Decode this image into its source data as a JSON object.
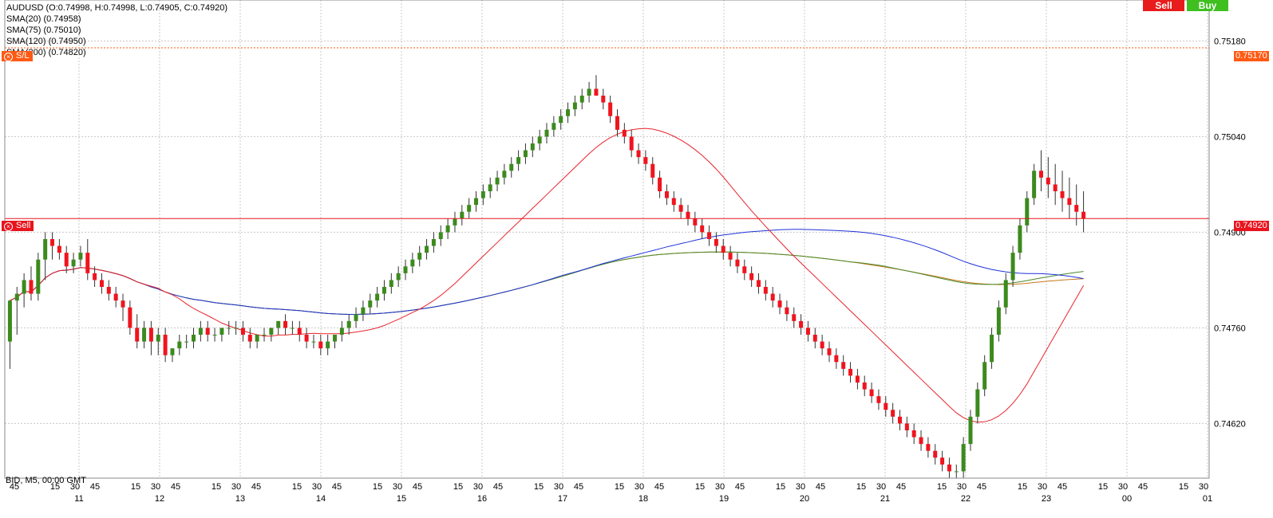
{
  "header": {
    "symbol_line": "AUDUSD (O:0.74998, H:0.74998, L:0.74905, C:0.74920)",
    "indicators": [
      "SMA(20) (0.74958)",
      "SMA(75) (0.75010)",
      "SMA(120) (0.74950)",
      "SMA(200) (0.74820)"
    ]
  },
  "trade_buttons": {
    "sell": "Sell",
    "buy": "Buy"
  },
  "markers": {
    "sl_label": "S/L",
    "sl_price": "0.75170",
    "sell_label": "Sell",
    "sell_price": "0.74920"
  },
  "bid_info": "BID, M5, 00:00 GMT",
  "colors": {
    "candle_up": "#3c8a1e",
    "candle_down": "#f0141e",
    "sma20": "#e8242c",
    "sma75": "#1e32d8",
    "sma120": "#4a8a2a",
    "sma200": "#c8781e",
    "marker_red": "#e8141e",
    "marker_orange": "#ff5a14",
    "grid": "#c8c8c8"
  },
  "chart_data": {
    "type": "candlestick",
    "yticks": [
      0.7518,
      0.7504,
      0.749,
      0.7476,
      0.7462
    ],
    "ylim": [
      0.7454,
      0.7524
    ],
    "day_labels": [
      "11",
      "12",
      "13",
      "14",
      "15",
      "16",
      "17",
      "18",
      "19",
      "20",
      "21",
      "22",
      "23",
      "00",
      "01"
    ],
    "minute_ticks": [
      "15",
      "30",
      "45"
    ],
    "horizontal_lines": [
      {
        "label": "S/L",
        "price": 0.7517
      },
      {
        "label": "Sell",
        "price": 0.7492
      }
    ],
    "candles": [
      [
        0.7474,
        0.748,
        0.747,
        0.748
      ],
      [
        0.748,
        0.7482,
        0.7475,
        0.7481
      ],
      [
        0.7481,
        0.7484,
        0.7479,
        0.7483
      ],
      [
        0.7483,
        0.7485,
        0.748,
        0.7481
      ],
      [
        0.7481,
        0.7487,
        0.748,
        0.7486
      ],
      [
        0.7486,
        0.749,
        0.7483,
        0.7489
      ],
      [
        0.7489,
        0.749,
        0.7486,
        0.7488
      ],
      [
        0.7488,
        0.7489,
        0.7486,
        0.7487
      ],
      [
        0.7487,
        0.7488,
        0.7484,
        0.7485
      ],
      [
        0.7485,
        0.7487,
        0.7484,
        0.7486
      ],
      [
        0.7486,
        0.7488,
        0.7485,
        0.7487
      ],
      [
        0.7487,
        0.7489,
        0.7483,
        0.7484
      ],
      [
        0.7484,
        0.7485,
        0.7482,
        0.7483
      ],
      [
        0.7483,
        0.7484,
        0.7481,
        0.7482
      ],
      [
        0.7482,
        0.7483,
        0.748,
        0.7481
      ],
      [
        0.7481,
        0.7482,
        0.7479,
        0.748
      ],
      [
        0.748,
        0.7481,
        0.7477,
        0.7479
      ],
      [
        0.7479,
        0.748,
        0.7475,
        0.7476
      ],
      [
        0.7476,
        0.7478,
        0.7473,
        0.7474
      ],
      [
        0.7474,
        0.7477,
        0.7473,
        0.7476
      ],
      [
        0.7476,
        0.7477,
        0.7472,
        0.7474
      ],
      [
        0.7474,
        0.7476,
        0.7472,
        0.7475
      ],
      [
        0.7475,
        0.7476,
        0.7471,
        0.7472
      ],
      [
        0.7472,
        0.7473,
        0.7471,
        0.7473
      ],
      [
        0.7473,
        0.7475,
        0.7472,
        0.7474
      ],
      [
        0.7474,
        0.7475,
        0.7473,
        0.7474
      ],
      [
        0.7474,
        0.7476,
        0.7473,
        0.7475
      ],
      [
        0.7475,
        0.7477,
        0.7474,
        0.7476
      ],
      [
        0.7476,
        0.7477,
        0.7474,
        0.7475
      ],
      [
        0.7475,
        0.7476,
        0.7474,
        0.7475
      ],
      [
        0.7475,
        0.7476,
        0.7474,
        0.7476
      ],
      [
        0.7476,
        0.7477,
        0.7475,
        0.7476
      ],
      [
        0.7476,
        0.7477,
        0.7475,
        0.7476
      ],
      [
        0.7476,
        0.7477,
        0.7474,
        0.7475
      ],
      [
        0.7475,
        0.7476,
        0.7473,
        0.7474
      ],
      [
        0.7474,
        0.7475,
        0.7473,
        0.7475
      ],
      [
        0.7475,
        0.7476,
        0.7474,
        0.7475
      ],
      [
        0.7475,
        0.7476,
        0.7474,
        0.7476
      ],
      [
        0.7476,
        0.7477,
        0.7475,
        0.7477
      ],
      [
        0.7477,
        0.7478,
        0.7475,
        0.7476
      ],
      [
        0.7476,
        0.7477,
        0.7475,
        0.7476
      ],
      [
        0.7476,
        0.7477,
        0.7474,
        0.7475
      ],
      [
        0.7475,
        0.7476,
        0.7473,
        0.7474
      ],
      [
        0.7474,
        0.7475,
        0.7473,
        0.7474
      ],
      [
        0.7474,
        0.7475,
        0.7472,
        0.7473
      ],
      [
        0.7473,
        0.7475,
        0.7472,
        0.7474
      ],
      [
        0.7474,
        0.7475,
        0.7473,
        0.7475
      ],
      [
        0.7475,
        0.7477,
        0.7474,
        0.7476
      ],
      [
        0.7476,
        0.7478,
        0.7475,
        0.7477
      ],
      [
        0.7477,
        0.7479,
        0.7476,
        0.7478
      ],
      [
        0.7478,
        0.748,
        0.7477,
        0.7479
      ],
      [
        0.7479,
        0.7481,
        0.7478,
        0.748
      ],
      [
        0.748,
        0.7482,
        0.7479,
        0.7481
      ],
      [
        0.7481,
        0.7483,
        0.748,
        0.7482
      ],
      [
        0.7482,
        0.7484,
        0.7481,
        0.7483
      ],
      [
        0.7483,
        0.7485,
        0.7482,
        0.7484
      ],
      [
        0.7484,
        0.7486,
        0.7483,
        0.7485
      ],
      [
        0.7485,
        0.7487,
        0.7484,
        0.7486
      ],
      [
        0.7486,
        0.7488,
        0.7485,
        0.7487
      ],
      [
        0.7487,
        0.7489,
        0.7486,
        0.7488
      ],
      [
        0.7488,
        0.749,
        0.7487,
        0.7489
      ],
      [
        0.7489,
        0.7491,
        0.7488,
        0.749
      ],
      [
        0.749,
        0.7492,
        0.7489,
        0.7491
      ],
      [
        0.7491,
        0.7493,
        0.749,
        0.7492
      ],
      [
        0.7492,
        0.7494,
        0.7491,
        0.7493
      ],
      [
        0.7493,
        0.7495,
        0.7492,
        0.7494
      ],
      [
        0.7494,
        0.7496,
        0.7493,
        0.7495
      ],
      [
        0.7495,
        0.7497,
        0.7494,
        0.7496
      ],
      [
        0.7496,
        0.7498,
        0.7495,
        0.7497
      ],
      [
        0.7497,
        0.7499,
        0.7496,
        0.7498
      ],
      [
        0.7498,
        0.75,
        0.7497,
        0.7499
      ],
      [
        0.7499,
        0.7501,
        0.7498,
        0.75
      ],
      [
        0.75,
        0.7502,
        0.7499,
        0.7501
      ],
      [
        0.7501,
        0.7503,
        0.75,
        0.7502
      ],
      [
        0.7502,
        0.7504,
        0.7501,
        0.7503
      ],
      [
        0.7503,
        0.7505,
        0.7502,
        0.7504
      ],
      [
        0.7504,
        0.7506,
        0.7503,
        0.7505
      ],
      [
        0.7505,
        0.7507,
        0.7504,
        0.7506
      ],
      [
        0.7506,
        0.7508,
        0.7505,
        0.7507
      ],
      [
        0.7507,
        0.7509,
        0.7506,
        0.7508
      ],
      [
        0.7508,
        0.751,
        0.7507,
        0.7509
      ],
      [
        0.7509,
        0.7511,
        0.7508,
        0.751
      ],
      [
        0.751,
        0.7512,
        0.7509,
        0.7511
      ],
      [
        0.7511,
        0.7513,
        0.751,
        0.751
      ],
      [
        0.751,
        0.7511,
        0.7508,
        0.7509
      ],
      [
        0.7509,
        0.751,
        0.7506,
        0.7507
      ],
      [
        0.7507,
        0.7508,
        0.7504,
        0.7505
      ],
      [
        0.7505,
        0.7506,
        0.7503,
        0.7504
      ],
      [
        0.7504,
        0.7505,
        0.7501,
        0.7502
      ],
      [
        0.7502,
        0.7503,
        0.75,
        0.7501
      ],
      [
        0.7501,
        0.7502,
        0.7499,
        0.75
      ],
      [
        0.75,
        0.7501,
        0.7497,
        0.7498
      ],
      [
        0.7498,
        0.7499,
        0.7495,
        0.7496
      ],
      [
        0.7496,
        0.7497,
        0.7494,
        0.7495
      ],
      [
        0.7495,
        0.7496,
        0.7493,
        0.7494
      ],
      [
        0.7494,
        0.7495,
        0.7492,
        0.7493
      ],
      [
        0.7493,
        0.7494,
        0.7491,
        0.7492
      ],
      [
        0.7492,
        0.7493,
        0.749,
        0.7491
      ],
      [
        0.7491,
        0.7492,
        0.7489,
        0.749
      ],
      [
        0.749,
        0.7491,
        0.7488,
        0.7489
      ],
      [
        0.7489,
        0.749,
        0.7487,
        0.7488
      ],
      [
        0.7488,
        0.7489,
        0.7486,
        0.7487
      ],
      [
        0.7487,
        0.7488,
        0.7485,
        0.7486
      ],
      [
        0.7486,
        0.7487,
        0.7484,
        0.7485
      ],
      [
        0.7485,
        0.7486,
        0.7483,
        0.7484
      ],
      [
        0.7484,
        0.7485,
        0.7482,
        0.7483
      ],
      [
        0.7483,
        0.7484,
        0.7481,
        0.7482
      ],
      [
        0.7482,
        0.7483,
        0.748,
        0.7481
      ],
      [
        0.7481,
        0.7482,
        0.7479,
        0.748
      ],
      [
        0.748,
        0.7481,
        0.7478,
        0.7479
      ],
      [
        0.7479,
        0.748,
        0.7477,
        0.7478
      ],
      [
        0.7478,
        0.7479,
        0.7476,
        0.7477
      ],
      [
        0.7477,
        0.7478,
        0.7475,
        0.7476
      ],
      [
        0.7476,
        0.7477,
        0.7474,
        0.7475
      ],
      [
        0.7475,
        0.7476,
        0.7473,
        0.7474
      ],
      [
        0.7474,
        0.7475,
        0.7472,
        0.7473
      ],
      [
        0.7473,
        0.7474,
        0.7471,
        0.7472
      ],
      [
        0.7472,
        0.7473,
        0.747,
        0.7471
      ],
      [
        0.7471,
        0.7472,
        0.7469,
        0.747
      ],
      [
        0.747,
        0.7471,
        0.7468,
        0.7469
      ],
      [
        0.7469,
        0.747,
        0.7467,
        0.7468
      ],
      [
        0.7468,
        0.7469,
        0.7466,
        0.7467
      ],
      [
        0.7467,
        0.7468,
        0.7465,
        0.7466
      ],
      [
        0.7466,
        0.7467,
        0.7464,
        0.7465
      ],
      [
        0.7465,
        0.7466,
        0.7463,
        0.7464
      ],
      [
        0.7464,
        0.7465,
        0.7462,
        0.7463
      ],
      [
        0.7463,
        0.7464,
        0.7461,
        0.7462
      ],
      [
        0.7462,
        0.7463,
        0.746,
        0.7461
      ],
      [
        0.7461,
        0.7462,
        0.7459,
        0.746
      ],
      [
        0.746,
        0.7461,
        0.7458,
        0.7459
      ],
      [
        0.7459,
        0.746,
        0.7457,
        0.7458
      ],
      [
        0.7458,
        0.7459,
        0.7456,
        0.7457
      ],
      [
        0.7457,
        0.7458,
        0.7455,
        0.7456
      ],
      [
        0.7456,
        0.7457,
        0.7454,
        0.7455
      ],
      [
        0.7455,
        0.7456,
        0.7454,
        0.7455
      ],
      [
        0.7455,
        0.746,
        0.7454,
        0.7459
      ],
      [
        0.7459,
        0.7464,
        0.7458,
        0.7463
      ],
      [
        0.7463,
        0.7468,
        0.7462,
        0.7467
      ],
      [
        0.7467,
        0.7472,
        0.7466,
        0.7471
      ],
      [
        0.7471,
        0.7476,
        0.747,
        0.7475
      ],
      [
        0.7475,
        0.748,
        0.7474,
        0.7479
      ],
      [
        0.7479,
        0.7484,
        0.7478,
        0.7483
      ],
      [
        0.7483,
        0.7488,
        0.7482,
        0.7487
      ],
      [
        0.7487,
        0.7492,
        0.7486,
        0.7491
      ],
      [
        0.7491,
        0.7496,
        0.749,
        0.7495
      ],
      [
        0.7495,
        0.75,
        0.7494,
        0.7499
      ],
      [
        0.7499,
        0.7502,
        0.7496,
        0.7498
      ],
      [
        0.7498,
        0.7501,
        0.7495,
        0.7497
      ],
      [
        0.7497,
        0.75,
        0.7494,
        0.7496
      ],
      [
        0.7496,
        0.7499,
        0.7493,
        0.7495
      ],
      [
        0.7495,
        0.7498,
        0.7492,
        0.7494
      ],
      [
        0.7494,
        0.7497,
        0.7491,
        0.7493
      ],
      [
        0.7493,
        0.7496,
        0.749,
        0.7492
      ]
    ]
  }
}
